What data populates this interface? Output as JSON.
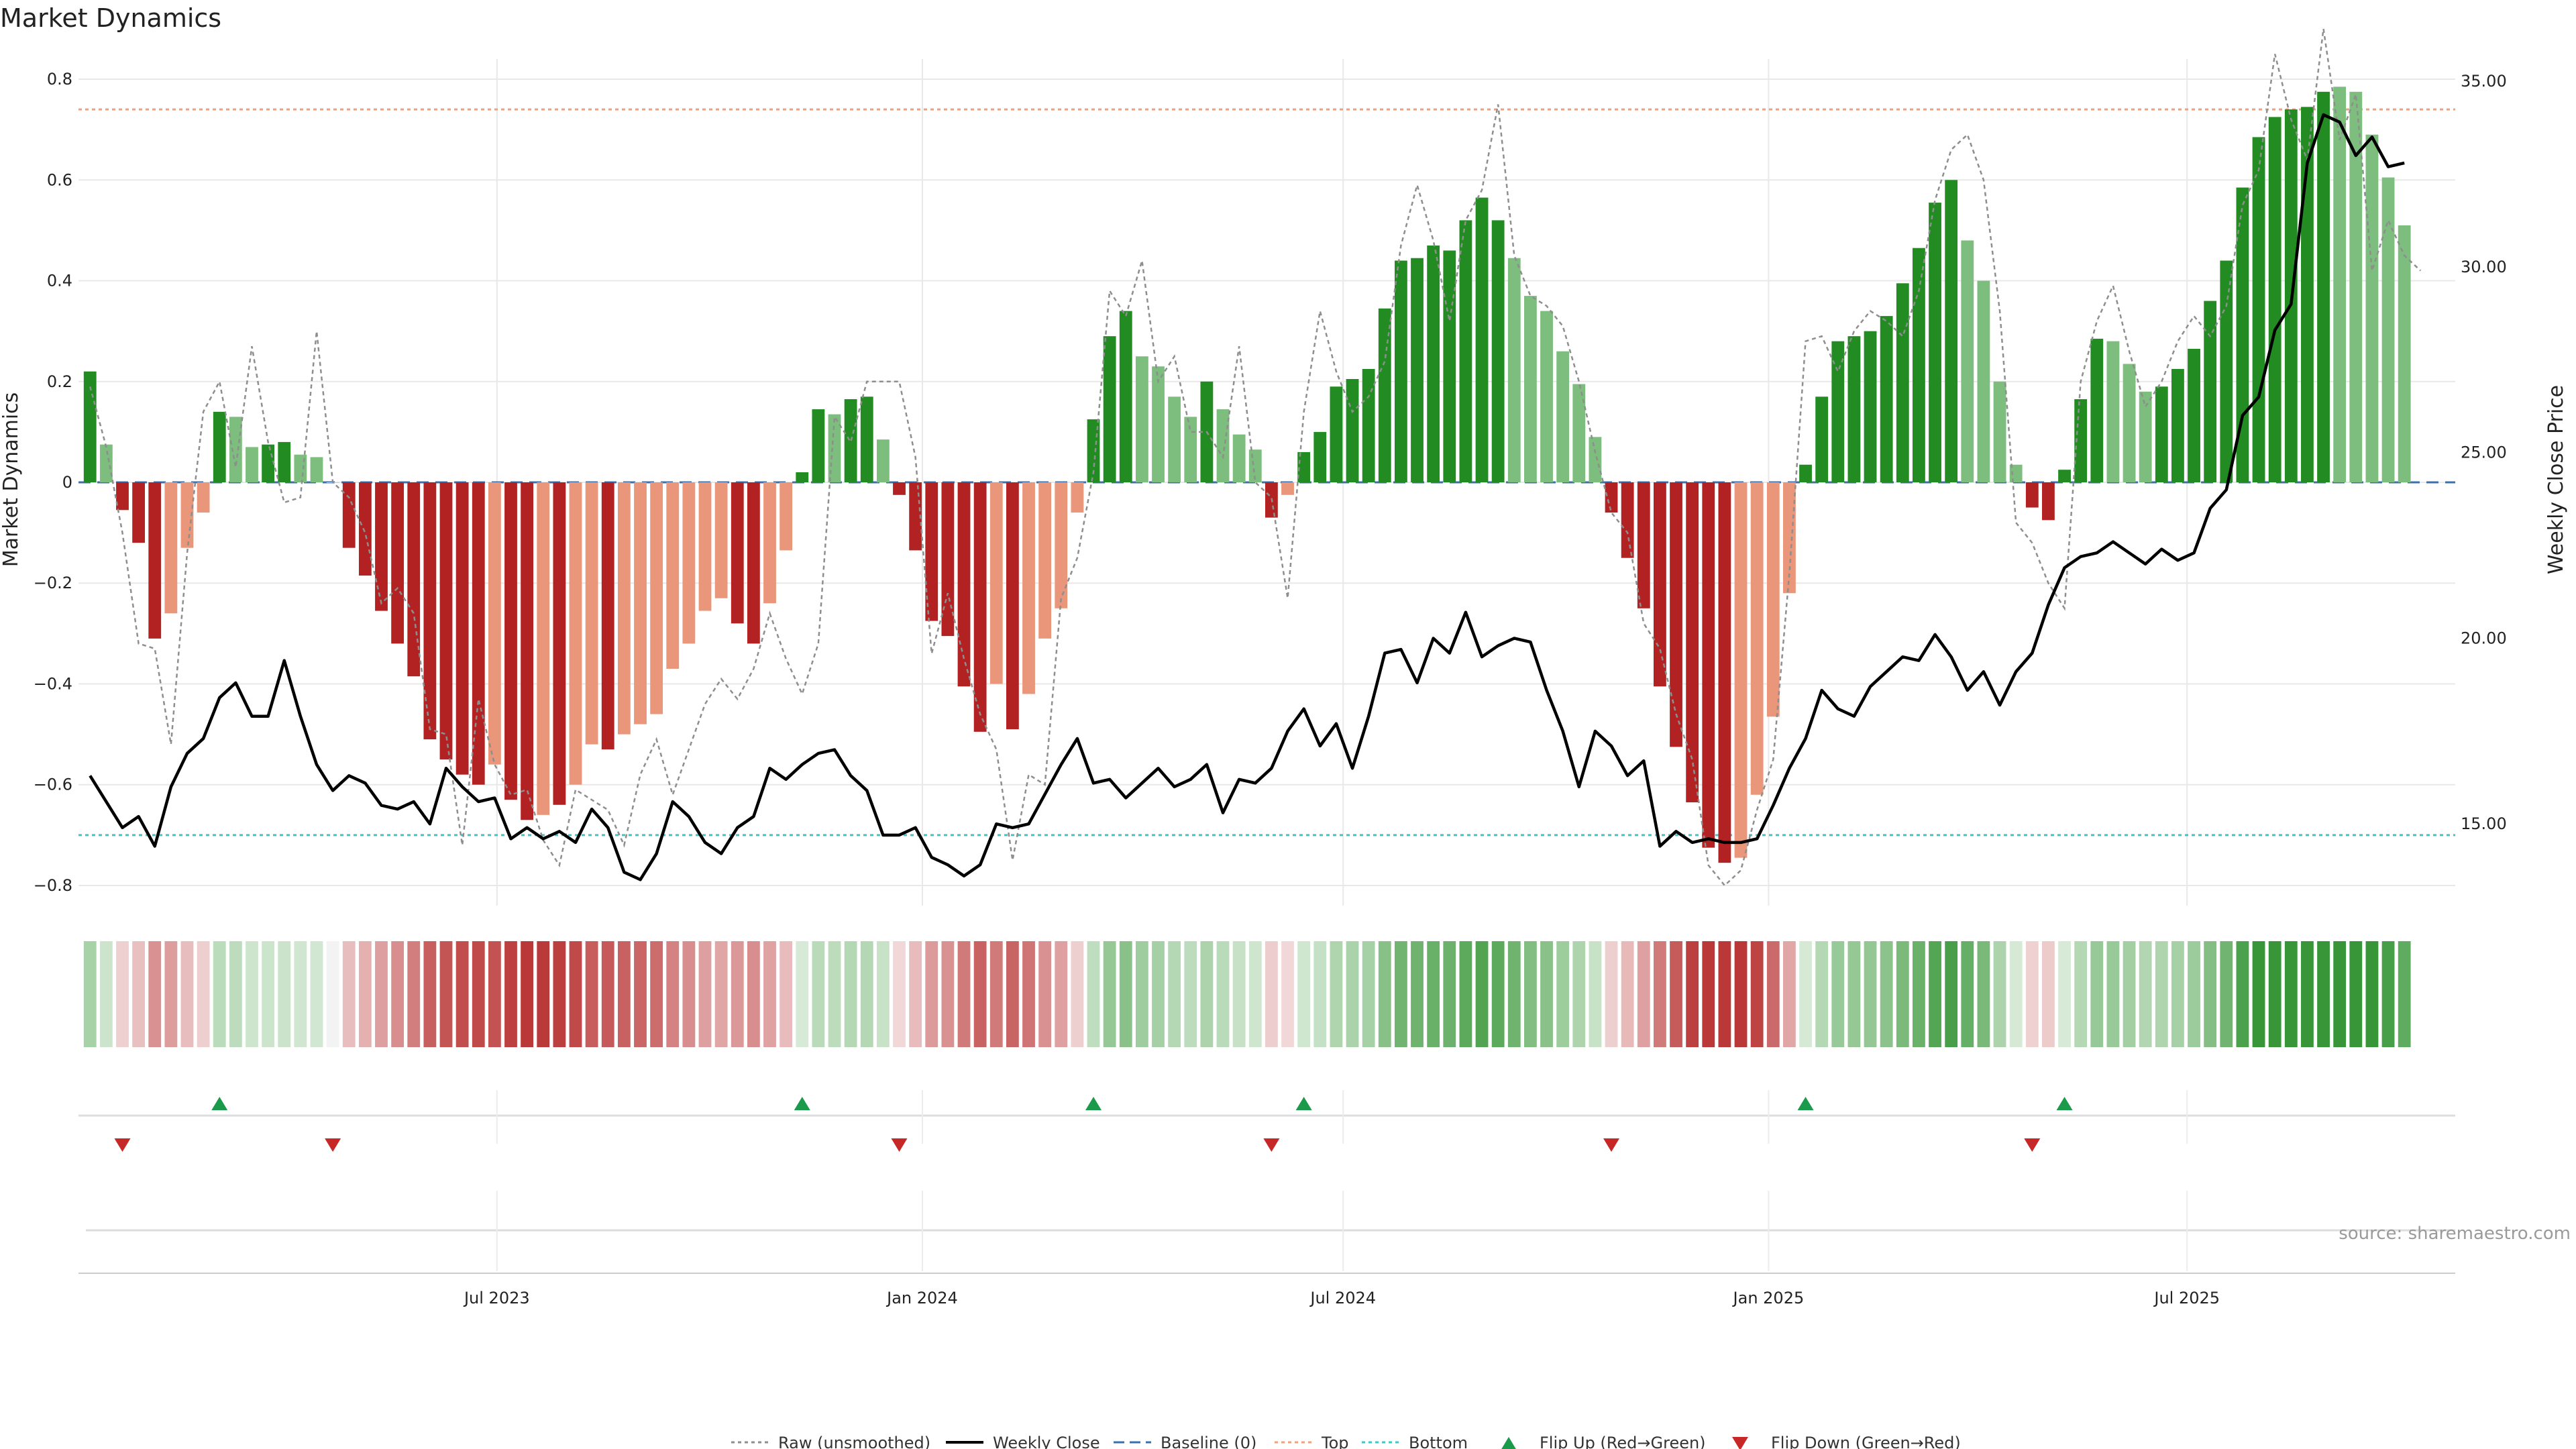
{
  "chart_data": {
    "type": "bar",
    "title": "Market Dynamics",
    "ylabel": "Market Dynamics",
    "y2label": "Weekly Close Price",
    "ylim": [
      -0.84,
      0.84
    ],
    "y2lim": [
      12.8,
      35.6
    ],
    "yticks": [
      0.8,
      0.6,
      0.4,
      0.2,
      0,
      -0.2,
      -0.4,
      -0.6,
      -0.8
    ],
    "yticklabels": [
      "0.8",
      "0.6",
      "0.4",
      "0.2",
      "0",
      "−0.2",
      "−0.4",
      "−0.6",
      "−0.8"
    ],
    "y2ticks": [
      35,
      30,
      25,
      20,
      15
    ],
    "y2ticklabels": [
      "35.00",
      "30.00",
      "25.00",
      "20.00",
      "15.00"
    ],
    "xlim": [
      "2023-01-01",
      "2025-10-25"
    ],
    "xticks": [
      {
        "date": "2023-07-01",
        "label": "Jul 2023"
      },
      {
        "date": "2024-01-01",
        "label": "Jan 2024"
      },
      {
        "date": "2024-07-01",
        "label": "Jul 2024"
      },
      {
        "date": "2025-01-01",
        "label": "Jan 2025"
      },
      {
        "date": "2025-07-01",
        "label": "Jul 2025"
      }
    ],
    "first_week": "2023-01-06",
    "week_step_days": 7,
    "top_level": 0.74,
    "bottom_level": -0.7,
    "baseline": 0,
    "weekly_dynamics": [
      0.22,
      0.075,
      -0.055,
      -0.12,
      -0.31,
      -0.26,
      -0.13,
      -0.06,
      0.14,
      0.13,
      0.07,
      0.075,
      0.08,
      0.055,
      0.05,
      0,
      -0.13,
      -0.185,
      -0.255,
      -0.32,
      -0.385,
      -0.51,
      -0.55,
      -0.58,
      -0.6,
      -0.56,
      -0.63,
      -0.67,
      -0.66,
      -0.64,
      -0.6,
      -0.52,
      -0.53,
      -0.5,
      -0.48,
      -0.46,
      -0.37,
      -0.32,
      -0.255,
      -0.23,
      -0.28,
      -0.32,
      -0.24,
      -0.135,
      0.02,
      0.145,
      0.135,
      0.165,
      0.17,
      0.085,
      -0.025,
      -0.135,
      -0.275,
      -0.305,
      -0.405,
      -0.495,
      -0.4,
      -0.49,
      -0.42,
      -0.31,
      -0.25,
      -0.06,
      0.125,
      0.29,
      0.34,
      0.25,
      0.23,
      0.17,
      0.13,
      0.2,
      0.145,
      0.095,
      0.065,
      -0.07,
      -0.025,
      0.06,
      0.1,
      0.19,
      0.205,
      0.225,
      0.345,
      0.44,
      0.445,
      0.47,
      0.46,
      0.52,
      0.565,
      0.52,
      0.445,
      0.37,
      0.34,
      0.26,
      0.195,
      0.09,
      -0.06,
      -0.15,
      -0.25,
      -0.405,
      -0.525,
      -0.635,
      -0.725,
      -0.755,
      -0.745,
      -0.62,
      -0.465,
      -0.22,
      0.035,
      0.17,
      0.28,
      0.29,
      0.3,
      0.33,
      0.395,
      0.465,
      0.555,
      0.6,
      0.48,
      0.4,
      0.2,
      0.035,
      -0.05,
      -0.075,
      0.025,
      0.165,
      0.285,
      0.28,
      0.235,
      0.18,
      0.19,
      0.225,
      0.265,
      0.36,
      0.44,
      0.585,
      0.685,
      0.725,
      0.74,
      0.745,
      0.775,
      0.785,
      0.775,
      0.69,
      0.605,
      0.51
    ],
    "weekly_color_class": [
      "G",
      "g",
      "R",
      "R",
      "R",
      "r",
      "r",
      "r",
      "G",
      "g",
      "g",
      "G",
      "G",
      "g",
      "g",
      "n",
      "R",
      "R",
      "R",
      "R",
      "R",
      "R",
      "R",
      "R",
      "R",
      "r",
      "R",
      "R",
      "r",
      "R",
      "r",
      "r",
      "R",
      "r",
      "r",
      "r",
      "r",
      "r",
      "r",
      "r",
      "R",
      "R",
      "r",
      "r",
      "G",
      "G",
      "g",
      "G",
      "G",
      "g",
      "R",
      "R",
      "R",
      "R",
      "R",
      "R",
      "r",
      "R",
      "r",
      "r",
      "r",
      "r",
      "G",
      "G",
      "G",
      "g",
      "g",
      "g",
      "g",
      "G",
      "g",
      "g",
      "g",
      "R",
      "r",
      "G",
      "G",
      "G",
      "G",
      "G",
      "G",
      "G",
      "G",
      "G",
      "G",
      "G",
      "G",
      "G",
      "g",
      "g",
      "g",
      "g",
      "g",
      "g",
      "R",
      "R",
      "R",
      "R",
      "R",
      "R",
      "R",
      "R",
      "r",
      "r",
      "r",
      "r",
      "G",
      "G",
      "G",
      "G",
      "G",
      "G",
      "G",
      "G",
      "G",
      "G",
      "g",
      "g",
      "g",
      "g",
      "R",
      "R",
      "G",
      "G",
      "G",
      "g",
      "g",
      "g",
      "G",
      "G",
      "G",
      "G",
      "G",
      "G",
      "G",
      "G",
      "G",
      "G",
      "G",
      "g",
      "g",
      "g",
      "g",
      "g"
    ],
    "raw_unsmoothed": [
      0.19,
      0.07,
      -0.1,
      -0.32,
      -0.33,
      -0.52,
      -0.14,
      0.14,
      0.2,
      0.03,
      0.27,
      0.08,
      -0.04,
      -0.03,
      0.3,
      0.0,
      -0.03,
      -0.1,
      -0.24,
      -0.21,
      -0.26,
      -0.49,
      -0.5,
      -0.72,
      -0.43,
      -0.56,
      -0.62,
      -0.61,
      -0.71,
      -0.76,
      -0.61,
      -0.63,
      -0.65,
      -0.72,
      -0.58,
      -0.51,
      -0.62,
      -0.53,
      -0.44,
      -0.39,
      -0.43,
      -0.37,
      -0.26,
      -0.35,
      -0.42,
      -0.32,
      0.13,
      0.08,
      0.2,
      0.2,
      0.2,
      0.05,
      -0.34,
      -0.22,
      -0.35,
      -0.46,
      -0.53,
      -0.75,
      -0.58,
      -0.6,
      -0.23,
      -0.15,
      0.02,
      0.38,
      0.33,
      0.44,
      0.2,
      0.25,
      0.1,
      0.1,
      0.05,
      0.27,
      0.0,
      -0.03,
      -0.23,
      0.14,
      0.34,
      0.22,
      0.14,
      0.17,
      0.24,
      0.47,
      0.59,
      0.48,
      0.32,
      0.52,
      0.58,
      0.75,
      0.45,
      0.37,
      0.35,
      0.31,
      0.2,
      0.06,
      -0.06,
      -0.1,
      -0.28,
      -0.33,
      -0.46,
      -0.55,
      -0.76,
      -0.8,
      -0.77,
      -0.65,
      -0.55,
      -0.18,
      0.28,
      0.29,
      0.22,
      0.3,
      0.34,
      0.32,
      0.29,
      0.38,
      0.56,
      0.66,
      0.69,
      0.6,
      0.34,
      -0.08,
      -0.12,
      -0.2,
      -0.25,
      0.2,
      0.32,
      0.39,
      0.26,
      0.15,
      0.2,
      0.28,
      0.33,
      0.29,
      0.35,
      0.55,
      0.62,
      0.85,
      0.72,
      0.64,
      0.9,
      0.68,
      0.77,
      0.42,
      0.52,
      0.45,
      0.42
    ],
    "weekly_close": [
      16.3,
      15.6,
      14.9,
      15.2,
      14.4,
      16.0,
      16.9,
      17.3,
      18.4,
      18.8,
      17.9,
      17.9,
      19.4,
      17.9,
      16.6,
      15.9,
      16.3,
      16.1,
      15.5,
      15.4,
      15.6,
      15.0,
      16.5,
      16.0,
      15.6,
      15.7,
      14.6,
      14.9,
      14.6,
      14.8,
      14.5,
      15.4,
      14.9,
      13.7,
      13.5,
      14.2,
      15.6,
      15.2,
      14.5,
      14.2,
      14.9,
      15.2,
      16.5,
      16.2,
      16.6,
      16.9,
      17.0,
      16.3,
      15.9,
      14.7,
      14.7,
      14.9,
      14.1,
      13.9,
      13.6,
      13.9,
      15.0,
      14.9,
      15.0,
      15.8,
      16.6,
      17.3,
      16.1,
      16.2,
      15.7,
      16.1,
      16.5,
      16.0,
      16.2,
      16.6,
      15.3,
      16.2,
      16.1,
      16.5,
      17.5,
      18.1,
      17.1,
      17.7,
      16.5,
      17.9,
      19.6,
      19.7,
      18.8,
      20.0,
      19.6,
      20.7,
      19.5,
      19.8,
      20.0,
      19.9,
      18.6,
      17.5,
      16.0,
      17.5,
      17.1,
      16.3,
      16.7,
      14.4,
      14.8,
      14.5,
      14.6,
      14.5,
      14.5,
      14.6,
      15.5,
      16.5,
      17.3,
      18.6,
      18.1,
      17.9,
      18.7,
      19.1,
      19.5,
      19.4,
      20.1,
      19.5,
      18.6,
      19.1,
      18.2,
      19.1,
      19.6,
      20.9,
      21.9,
      22.2,
      22.3,
      22.6,
      22.3,
      22.0,
      22.4,
      22.1,
      22.3,
      23.5,
      24.0,
      26.0,
      26.5,
      28.3,
      29.0,
      32.8,
      34.1,
      33.9,
      33.0,
      33.5,
      32.7,
      32.8
    ],
    "flip_up_weeks": [
      8,
      44,
      62,
      75,
      106,
      122
    ],
    "flip_down_weeks": [
      2,
      15,
      50,
      73,
      94,
      120
    ],
    "legend": [
      {
        "label": "Raw (unsmoothed)",
        "kind": "dotted-line",
        "color": "#8e8e8e"
      },
      {
        "label": "Weekly Close",
        "kind": "solid-line",
        "color": "#000000"
      },
      {
        "label": "Baseline (0)",
        "kind": "dashed-line",
        "color": "#3a6fb0"
      },
      {
        "label": "Top",
        "kind": "dotted-line",
        "color": "#f0a07a"
      },
      {
        "label": "Bottom",
        "kind": "dotted-line",
        "color": "#3fc6c6"
      },
      {
        "label": "Flip Up (Red→Green)",
        "kind": "triangle-up",
        "color": "#1a9a4a"
      },
      {
        "label": "Flip Down (Green→Red)",
        "kind": "triangle-down",
        "color": "#c62828"
      }
    ],
    "source": "source: sharemaestro.com",
    "colors": {
      "strong_green": "#228b22",
      "light_green": "#7dbd7d",
      "strong_red": "#b22222",
      "light_red": "#e9967a",
      "raw_line": "#8e8e8e",
      "close_line": "#000000",
      "baseline": "#3a6fb0",
      "top": "#f0a07a",
      "bottom": "#3fc6c6",
      "flip_up": "#1a9a4a",
      "flip_down": "#c62828",
      "grid": "#e8e8e8"
    }
  }
}
